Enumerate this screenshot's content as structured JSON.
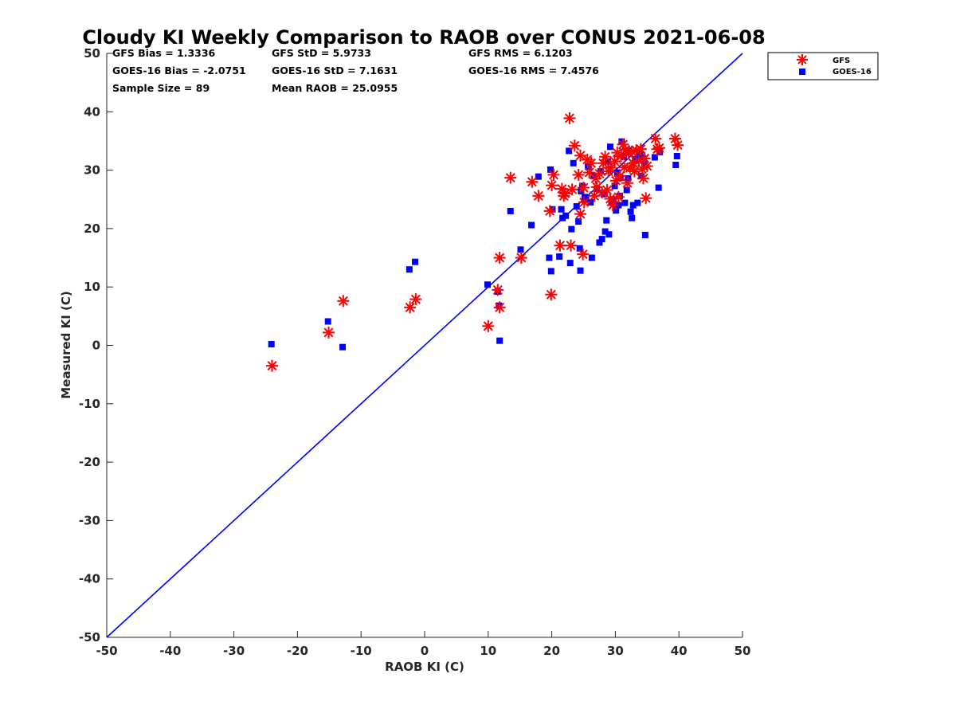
{
  "chart_data": {
    "type": "scatter",
    "title": "Cloudy KI Weekly Comparison to RAOB over CONUS 2021-06-08",
    "xlabel": "RAOB KI (C)",
    "ylabel": "Measured KI (C)",
    "xlim": [
      -50,
      50
    ],
    "ylim": [
      -50,
      50
    ],
    "xticks": [
      -50,
      -40,
      -30,
      -20,
      -10,
      0,
      10,
      20,
      30,
      40,
      50
    ],
    "yticks": [
      -50,
      -40,
      -30,
      -20,
      -10,
      0,
      10,
      20,
      30,
      40,
      50
    ],
    "xtick_labels": [
      "-50",
      "-40",
      "-30",
      "-20",
      "-10",
      "0",
      "10",
      "20",
      "30",
      "40",
      "50"
    ],
    "ytick_labels": [
      "-50",
      "-40",
      "-30",
      "-20",
      "-10",
      "0",
      "10",
      "20",
      "30",
      "40",
      "50"
    ],
    "grid": false,
    "legend_position": "top-right, outside plot",
    "reference_line": {
      "name": "1:1 line",
      "color": "#0000ff",
      "from": [
        -50,
        -50
      ],
      "to": [
        50,
        50
      ]
    },
    "stats": [
      {
        "id": "gfs_bias",
        "text": "GFS Bias = 1.3336"
      },
      {
        "id": "gfs_std",
        "text": "GFS StD = 5.9733"
      },
      {
        "id": "gfs_rms",
        "text": "GFS RMS = 6.1203"
      },
      {
        "id": "goes_bias",
        "text": "GOES-16 Bias = -2.0751"
      },
      {
        "id": "goes_std",
        "text": "GOES-16 StD = 7.1631"
      },
      {
        "id": "goes_rms",
        "text": "GOES-16 RMS = 7.4576"
      },
      {
        "id": "sample_size",
        "text": "Sample Size = 89"
      },
      {
        "id": "mean_raob",
        "text": "Mean RAOB = 25.0955"
      }
    ],
    "series": [
      {
        "name": "GFS",
        "marker": "asterisk",
        "color": "#ff0000",
        "points": [
          [
            -24.0,
            -3.5
          ],
          [
            -15.1,
            2.2
          ],
          [
            -12.8,
            7.6
          ],
          [
            -2.3,
            6.5
          ],
          [
            -1.4,
            7.9
          ],
          [
            10.0,
            3.3
          ],
          [
            11.5,
            9.5
          ],
          [
            11.8,
            6.5
          ],
          [
            11.8,
            15.0
          ],
          [
            13.5,
            28.7
          ],
          [
            15.2,
            15.0
          ],
          [
            16.9,
            28.0
          ],
          [
            17.9,
            25.6
          ],
          [
            19.7,
            23.0
          ],
          [
            19.9,
            8.7
          ],
          [
            20.0,
            27.4
          ],
          [
            20.3,
            29.2
          ],
          [
            21.3,
            17.1
          ],
          [
            21.6,
            26.8
          ],
          [
            21.9,
            25.6
          ],
          [
            22.1,
            26.0
          ],
          [
            22.8,
            38.9
          ],
          [
            23.0,
            17.1
          ],
          [
            23.2,
            26.7
          ],
          [
            23.6,
            34.2
          ],
          [
            24.2,
            29.2
          ],
          [
            24.5,
            22.5
          ],
          [
            24.5,
            32.5
          ],
          [
            24.9,
            15.6
          ],
          [
            25.0,
            27.0
          ],
          [
            25.1,
            24.5
          ],
          [
            25.6,
            31.8
          ],
          [
            25.9,
            29.6
          ],
          [
            26.2,
            31.2
          ],
          [
            26.7,
            25.6
          ],
          [
            26.9,
            28.6
          ],
          [
            27.1,
            27.1
          ],
          [
            27.5,
            29.4
          ],
          [
            27.9,
            26.2
          ],
          [
            28.1,
            31.2
          ],
          [
            28.4,
            32.3
          ],
          [
            28.7,
            26.6
          ],
          [
            28.9,
            29.8
          ],
          [
            29.2,
            25.1
          ],
          [
            29.3,
            30.4
          ],
          [
            29.6,
            24.0
          ],
          [
            29.9,
            31.5
          ],
          [
            30.1,
            28.2
          ],
          [
            30.3,
            33.0
          ],
          [
            30.5,
            25.4
          ],
          [
            30.7,
            29.0
          ],
          [
            30.9,
            32.4
          ],
          [
            31.2,
            34.4
          ],
          [
            31.4,
            30.5
          ],
          [
            31.6,
            33.5
          ],
          [
            31.9,
            27.8
          ],
          [
            32.1,
            32.9
          ],
          [
            32.3,
            30.4
          ],
          [
            32.6,
            33.2
          ],
          [
            32.8,
            31.2
          ],
          [
            33.0,
            29.8
          ],
          [
            33.3,
            33.4
          ],
          [
            33.7,
            31.6
          ],
          [
            34.0,
            33.6
          ],
          [
            34.2,
            30.2
          ],
          [
            34.4,
            28.6
          ],
          [
            34.6,
            32.0
          ],
          [
            34.8,
            25.2
          ],
          [
            35.0,
            30.7
          ],
          [
            36.3,
            35.4
          ],
          [
            36.6,
            33.6
          ],
          [
            36.9,
            33.8
          ],
          [
            39.4,
            35.4
          ],
          [
            39.8,
            34.3
          ]
        ]
      },
      {
        "name": "GOES-16",
        "marker": "square",
        "color": "#0000ff",
        "points": [
          [
            -24.1,
            0.2
          ],
          [
            -15.2,
            4.1
          ],
          [
            -12.9,
            -0.3
          ],
          [
            -2.4,
            13.0
          ],
          [
            -1.5,
            14.3
          ],
          [
            9.9,
            10.4
          ],
          [
            11.5,
            9.2
          ],
          [
            11.7,
            6.8
          ],
          [
            11.8,
            0.8
          ],
          [
            13.5,
            23.0
          ],
          [
            15.1,
            16.4
          ],
          [
            16.8,
            20.6
          ],
          [
            17.9,
            28.9
          ],
          [
            19.6,
            15.0
          ],
          [
            19.8,
            30.1
          ],
          [
            19.9,
            12.7
          ],
          [
            20.1,
            23.3
          ],
          [
            21.2,
            15.2
          ],
          [
            21.5,
            23.3
          ],
          [
            21.7,
            21.8
          ],
          [
            22.2,
            22.2
          ],
          [
            22.7,
            33.3
          ],
          [
            22.9,
            14.1
          ],
          [
            23.1,
            19.9
          ],
          [
            23.4,
            31.2
          ],
          [
            23.9,
            23.8
          ],
          [
            24.2,
            21.2
          ],
          [
            24.4,
            16.6
          ],
          [
            24.5,
            12.8
          ],
          [
            24.6,
            26.4
          ],
          [
            24.8,
            27.3
          ],
          [
            25.2,
            25.4
          ],
          [
            25.4,
            25.0
          ],
          [
            25.7,
            30.6
          ],
          [
            26.1,
            24.5
          ],
          [
            26.3,
            15.0
          ],
          [
            26.6,
            29.0
          ],
          [
            27.1,
            26.8
          ],
          [
            27.5,
            17.6
          ],
          [
            27.7,
            29.8
          ],
          [
            27.9,
            18.2
          ],
          [
            28.2,
            25.9
          ],
          [
            28.4,
            19.5
          ],
          [
            28.6,
            21.4
          ],
          [
            28.8,
            31.5
          ],
          [
            29.0,
            19.0
          ],
          [
            29.2,
            34.0
          ],
          [
            29.4,
            24.5
          ],
          [
            29.7,
            25.0
          ],
          [
            29.9,
            27.3
          ],
          [
            30.1,
            23.1
          ],
          [
            30.3,
            29.6
          ],
          [
            30.5,
            24.0
          ],
          [
            30.7,
            25.6
          ],
          [
            30.8,
            28.7
          ],
          [
            31.0,
            34.9
          ],
          [
            31.3,
            32.3
          ],
          [
            31.5,
            24.4
          ],
          [
            31.8,
            26.6
          ],
          [
            32.0,
            28.6
          ],
          [
            32.2,
            33.4
          ],
          [
            32.4,
            22.9
          ],
          [
            32.6,
            21.8
          ],
          [
            32.8,
            24.0
          ],
          [
            33.1,
            31.9
          ],
          [
            33.5,
            24.4
          ],
          [
            33.9,
            32.8
          ],
          [
            34.1,
            29.0
          ],
          [
            34.3,
            32.1
          ],
          [
            34.6,
            31.2
          ],
          [
            34.7,
            18.9
          ],
          [
            36.2,
            32.2
          ],
          [
            36.8,
            27.0
          ],
          [
            37.0,
            33.1
          ],
          [
            39.5,
            30.9
          ],
          [
            39.7,
            32.4
          ]
        ]
      }
    ]
  }
}
